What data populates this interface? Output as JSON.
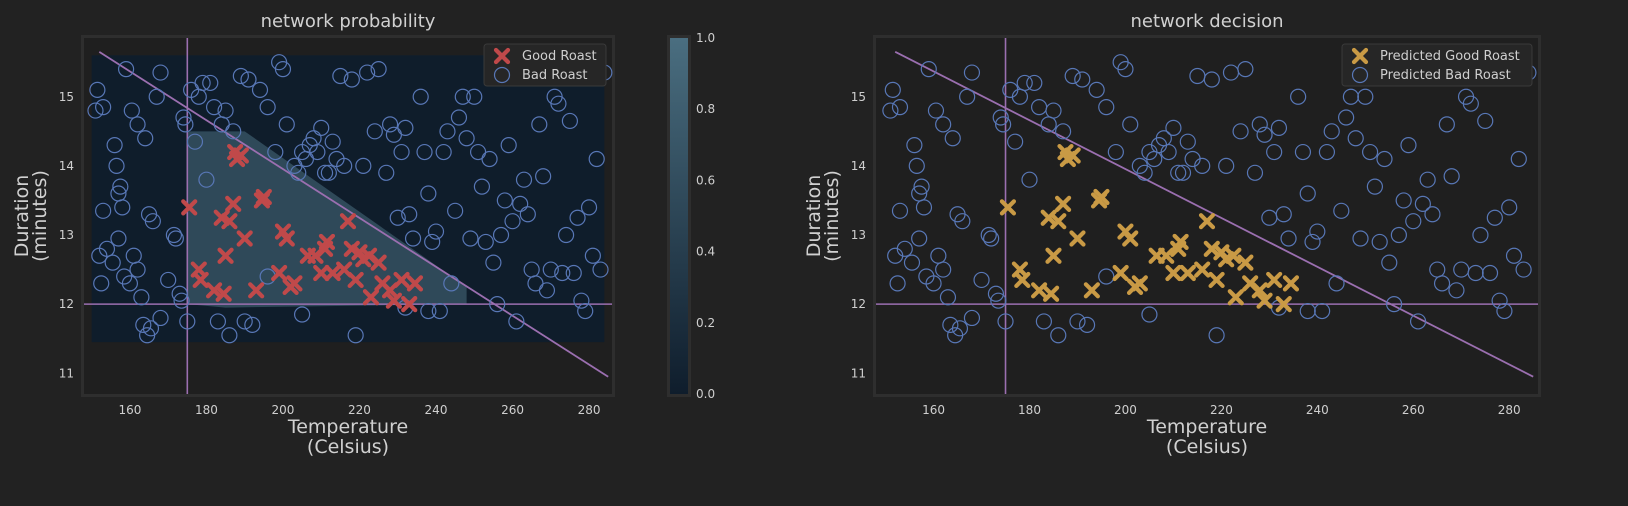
{
  "colors": {
    "background": "#222222",
    "axes_bg": "#1f1f1f",
    "axes_frame": "#2e2e2e",
    "text": "#cfcfcf",
    "title": "#d0d0d0",
    "good": "#c0494a",
    "predicted_good": "#c99a45",
    "bad_ring": "#5877b6",
    "boundary_line": "#9b6fb0",
    "prob_low": "#0f1d2c",
    "prob_high": "#4a6e80"
  },
  "chart_data": [
    {
      "type": "scatter",
      "title": "network probability",
      "xlabel": [
        "Temperature",
        "(Celsius)"
      ],
      "ylabel": [
        "Duration",
        "(minutes)"
      ],
      "xlim": [
        148,
        286
      ],
      "ylim": [
        10.7,
        15.85
      ],
      "xticks": [
        160,
        180,
        200,
        220,
        240,
        260,
        280
      ],
      "yticks": [
        11,
        12,
        13,
        14,
        15
      ],
      "legend": {
        "position": "top-right",
        "entries": [
          "Good Roast",
          "Bad Roast"
        ]
      },
      "colorbar": {
        "range": [
          0,
          1
        ],
        "ticks": [
          "0.0",
          "0.2",
          "0.4",
          "0.6",
          "0.8",
          "1.0"
        ]
      },
      "background_region": {
        "x": [
          150,
          284
        ],
        "y": [
          11.45,
          15.6
        ],
        "value": 0.05
      },
      "probability_region": {
        "vertices": [
          [
            175,
            14.5
          ],
          [
            190,
            14.5
          ],
          [
            248,
            12.25
          ],
          [
            248,
            12.0
          ],
          [
            185,
            11.95
          ],
          [
            175,
            12.0
          ]
        ],
        "value": 0.65
      },
      "reference_lines": {
        "vertical_x": 175,
        "horizontal_y": 12,
        "diagonal": [
          [
            152,
            15.65
          ],
          [
            285,
            10.95
          ]
        ]
      },
      "good_label": "Good Roast",
      "bad_label": "Bad Roast",
      "markers": "good"
    },
    {
      "type": "scatter",
      "title": "network decision",
      "xlabel": [
        "Temperature",
        "(Celsius)"
      ],
      "ylabel": [
        "Duration",
        "(minutes)"
      ],
      "xlim": [
        148,
        286
      ],
      "ylim": [
        10.7,
        15.85
      ],
      "xticks": [
        160,
        180,
        200,
        220,
        240,
        260,
        280
      ],
      "yticks": [
        11,
        12,
        13,
        14,
        15
      ],
      "legend": {
        "position": "top-right",
        "entries": [
          "Predicted Good Roast",
          "Predicted Bad Roast"
        ]
      },
      "reference_lines": {
        "vertical_x": 175,
        "horizontal_y": 12,
        "diagonal": [
          [
            152,
            15.65
          ],
          [
            285,
            10.95
          ]
        ]
      },
      "good_label": "Predicted Good Roast",
      "bad_label": "Predicted Bad Roast",
      "markers": "predicted_good"
    }
  ],
  "good_points": [
    [
      175.5,
      13.4
    ],
    [
      178,
      12.5
    ],
    [
      178.5,
      12.35
    ],
    [
      182,
      12.2
    ],
    [
      184,
      13.25
    ],
    [
      184.5,
      12.15
    ],
    [
      185,
      12.7
    ],
    [
      186,
      13.2
    ],
    [
      187,
      13.45
    ],
    [
      187.5,
      14.2
    ],
    [
      188,
      14.1
    ],
    [
      189,
      14.15
    ],
    [
      190,
      12.95
    ],
    [
      193,
      12.2
    ],
    [
      194.5,
      13.5
    ],
    [
      195,
      13.55
    ],
    [
      199,
      12.45
    ],
    [
      200,
      13.05
    ],
    [
      201,
      12.95
    ],
    [
      202,
      12.25
    ],
    [
      203,
      12.3
    ],
    [
      206.5,
      12.7
    ],
    [
      208.5,
      12.7
    ],
    [
      210,
      12.45
    ],
    [
      211,
      12.8
    ],
    [
      211.5,
      12.9
    ],
    [
      213,
      12.45
    ],
    [
      216,
      12.5
    ],
    [
      217,
      13.2
    ],
    [
      218,
      12.8
    ],
    [
      219,
      12.35
    ],
    [
      220,
      12.75
    ],
    [
      221,
      12.65
    ],
    [
      222.5,
      12.7
    ],
    [
      223,
      12.1
    ],
    [
      225,
      12.6
    ],
    [
      226,
      12.3
    ],
    [
      228,
      12.2
    ],
    [
      229,
      12.05
    ],
    [
      231,
      12.35
    ],
    [
      233,
      12.0
    ],
    [
      234.5,
      12.3
    ]
  ],
  "bad_points": [
    [
      151,
      14.8
    ],
    [
      151.5,
      15.1
    ],
    [
      152,
      12.7
    ],
    [
      152.5,
      12.3
    ],
    [
      153,
      14.85
    ],
    [
      154,
      12.8
    ],
    [
      155.5,
      12.6
    ],
    [
      156,
      14.3
    ],
    [
      156.5,
      14.0
    ],
    [
      157,
      13.6
    ],
    [
      157.5,
      13.7
    ],
    [
      158,
      13.4
    ],
    [
      158.5,
      12.4
    ],
    [
      159,
      15.4
    ],
    [
      160,
      12.3
    ],
    [
      160.5,
      14.8
    ],
    [
      161,
      12.7
    ],
    [
      162,
      14.6
    ],
    [
      163,
      12.1
    ],
    [
      163.5,
      11.7
    ],
    [
      164,
      14.4
    ],
    [
      164.5,
      11.55
    ],
    [
      165,
      13.3
    ],
    [
      165.5,
      11.65
    ],
    [
      166,
      13.2
    ],
    [
      167,
      15.0
    ],
    [
      168,
      11.8
    ],
    [
      170,
      12.35
    ],
    [
      171.5,
      13.0
    ],
    [
      172,
      12.95
    ],
    [
      173,
      12.15
    ],
    [
      173.5,
      12.05
    ],
    [
      174,
      14.7
    ],
    [
      174.5,
      14.6
    ],
    [
      175,
      11.75
    ],
    [
      176,
      15.1
    ],
    [
      177,
      14.35
    ],
    [
      178,
      15.0
    ],
    [
      179,
      15.2
    ],
    [
      180,
      13.8
    ],
    [
      181,
      15.2
    ],
    [
      182,
      14.85
    ],
    [
      183,
      11.75
    ],
    [
      184,
      14.6
    ],
    [
      185,
      14.8
    ],
    [
      186,
      11.55
    ],
    [
      187,
      14.5
    ],
    [
      189,
      15.3
    ],
    [
      190,
      11.75
    ],
    [
      191,
      15.25
    ],
    [
      192,
      11.7
    ],
    [
      194,
      15.1
    ],
    [
      196,
      14.85
    ],
    [
      198,
      14.2
    ],
    [
      199,
      15.5
    ],
    [
      200,
      15.4
    ],
    [
      201,
      14.6
    ],
    [
      203,
      14.0
    ],
    [
      204,
      13.9
    ],
    [
      205,
      14.2
    ],
    [
      206,
      14.1
    ],
    [
      207,
      14.3
    ],
    [
      208,
      14.4
    ],
    [
      209,
      14.2
    ],
    [
      210,
      14.55
    ],
    [
      211,
      13.9
    ],
    [
      212,
      13.9
    ],
    [
      213,
      14.35
    ],
    [
      214,
      14.1
    ],
    [
      215,
      15.3
    ],
    [
      216,
      14.0
    ],
    [
      218,
      15.25
    ],
    [
      219,
      11.55
    ],
    [
      221,
      14.0
    ],
    [
      222,
      15.35
    ],
    [
      224,
      14.5
    ],
    [
      225,
      15.4
    ],
    [
      227,
      13.9
    ],
    [
      228,
      14.6
    ],
    [
      229,
      14.45
    ],
    [
      230,
      13.25
    ],
    [
      231,
      14.2
    ],
    [
      232,
      14.55
    ],
    [
      233,
      13.3
    ],
    [
      234,
      12.95
    ],
    [
      236,
      15.0
    ],
    [
      237,
      14.2
    ],
    [
      238,
      13.6
    ],
    [
      239,
      12.9
    ],
    [
      240,
      13.05
    ],
    [
      241,
      11.9
    ],
    [
      242,
      14.2
    ],
    [
      243,
      14.5
    ],
    [
      245,
      13.35
    ],
    [
      246,
      14.7
    ],
    [
      247,
      15.0
    ],
    [
      248,
      14.4
    ],
    [
      249,
      12.95
    ],
    [
      250,
      15.0
    ],
    [
      251,
      14.2
    ],
    [
      252,
      13.7
    ],
    [
      253,
      12.9
    ],
    [
      254,
      14.1
    ],
    [
      255,
      12.6
    ],
    [
      256,
      12.0
    ],
    [
      257,
      13.0
    ],
    [
      258,
      13.5
    ],
    [
      259,
      14.3
    ],
    [
      260,
      13.2
    ],
    [
      261,
      11.75
    ],
    [
      262,
      13.45
    ],
    [
      263,
      13.8
    ],
    [
      264,
      13.3
    ],
    [
      265,
      12.5
    ],
    [
      266,
      12.3
    ],
    [
      267,
      14.6
    ],
    [
      268,
      13.85
    ],
    [
      269,
      12.2
    ],
    [
      270,
      12.5
    ],
    [
      271,
      15.0
    ],
    [
      272,
      14.9
    ],
    [
      273,
      12.45
    ],
    [
      274,
      13.0
    ],
    [
      275,
      14.65
    ],
    [
      276,
      12.45
    ],
    [
      277,
      13.25
    ],
    [
      278,
      12.05
    ],
    [
      279,
      11.9
    ],
    [
      280,
      13.4
    ],
    [
      281,
      12.7
    ],
    [
      282,
      14.1
    ],
    [
      283,
      12.5
    ],
    [
      284,
      15.35
    ],
    [
      153,
      13.35
    ],
    [
      157,
      12.95
    ],
    [
      162,
      12.5
    ],
    [
      168,
      15.35
    ],
    [
      196,
      12.4
    ],
    [
      205,
      11.85
    ],
    [
      232,
      11.95
    ],
    [
      238,
      11.9
    ],
    [
      244,
      12.3
    ]
  ]
}
